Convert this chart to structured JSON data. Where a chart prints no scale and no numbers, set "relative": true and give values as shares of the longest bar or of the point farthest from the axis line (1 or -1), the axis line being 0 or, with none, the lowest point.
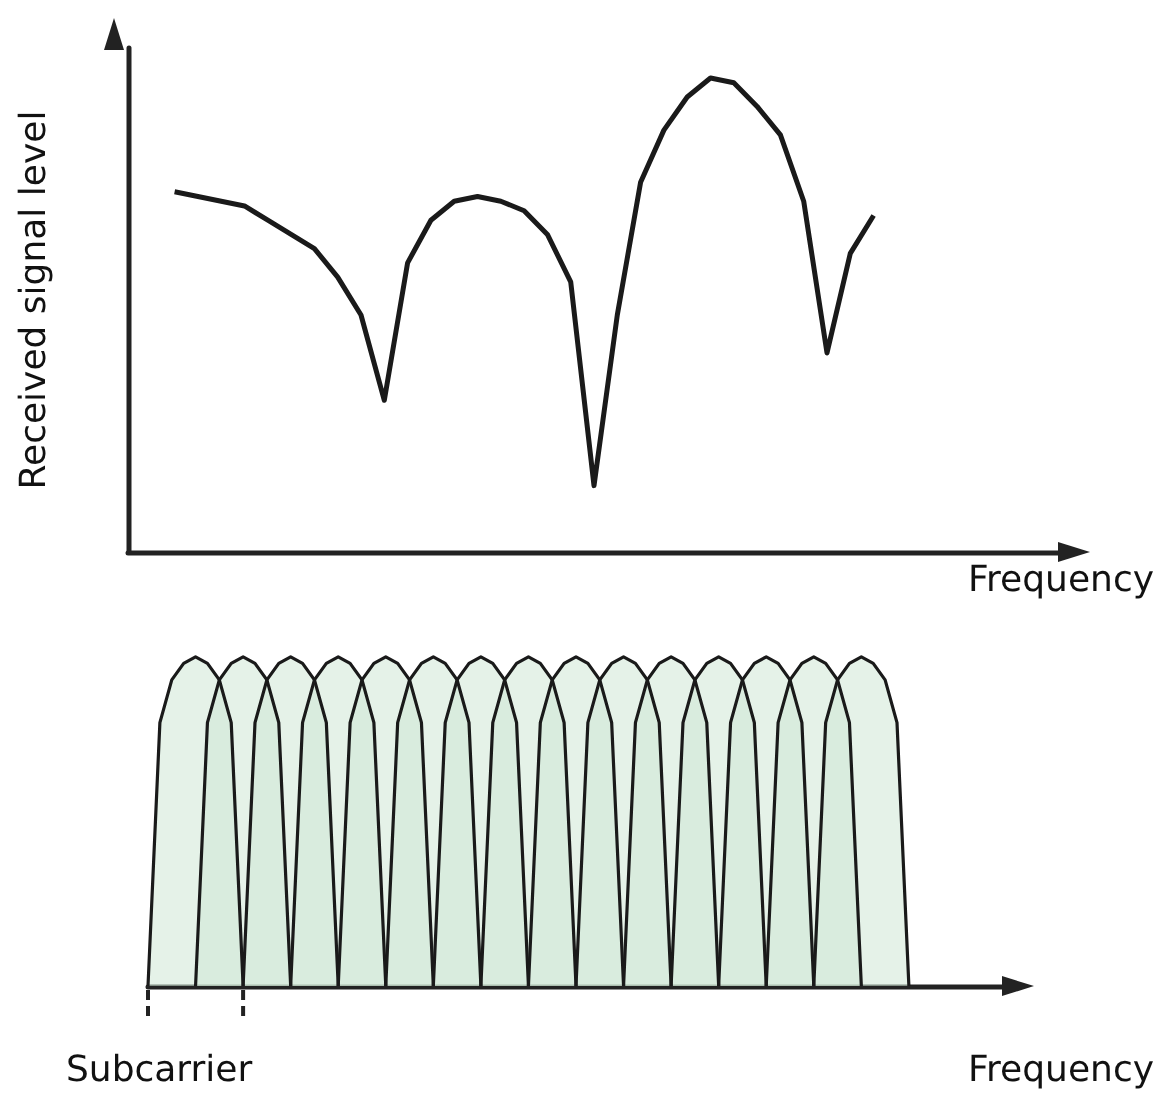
{
  "chart_data": [
    {
      "type": "line",
      "relative": true,
      "ylabel": "Received signal level",
      "xlabel": "Frequency",
      "marker": "none",
      "line_style": "solid",
      "categories": [
        null,
        null,
        null,
        null,
        null,
        null,
        null,
        null,
        null,
        null,
        null,
        null,
        null,
        null,
        null,
        null,
        null,
        null,
        null,
        null,
        null,
        null,
        null,
        null,
        null,
        null,
        null,
        null,
        null,
        null,
        null,
        null,
        null,
        null,
        null,
        null,
        null,
        null,
        null,
        null,
        null
      ],
      "series": [
        {
          "color": "#1a1a1a",
          "values": [
            null,
            null,
            0.76,
            0.75,
            0.74,
            0.73,
            0.7,
            0.67,
            0.64,
            0.58,
            0.5,
            0.32,
            0.61,
            0.7,
            0.74,
            0.75,
            0.74,
            0.72,
            0.67,
            0.57,
            0.14,
            0.5,
            0.78,
            0.89,
            0.96,
            1,
            0.99,
            0.94,
            0.88,
            0.74,
            0.42,
            0.63,
            0.71,
            null,
            null,
            null,
            null,
            null,
            null,
            null,
            null
          ]
        }
      ]
    },
    {
      "type": "area",
      "relative": true,
      "xlabel": "Frequency",
      "marker": "none",
      "annotations": [
        "Subcarrier"
      ],
      "categories": [
        null,
        null,
        null,
        null,
        null,
        null,
        null,
        null,
        null,
        null,
        null,
        null,
        null,
        null,
        null,
        null,
        null,
        null,
        null,
        null,
        null,
        null,
        null,
        null,
        null,
        null,
        null,
        null,
        null,
        null,
        null,
        null,
        null,
        null,
        null,
        null,
        null,
        null,
        null,
        null,
        null,
        null,
        null,
        null,
        null,
        null,
        null,
        null,
        null,
        null,
        null,
        null,
        null,
        null,
        null,
        null,
        null,
        null,
        null,
        null,
        null,
        null,
        null,
        null,
        null,
        null,
        null,
        null,
        null,
        null,
        null,
        null,
        null
      ],
      "series": [
        {
          "color": "#cfe8d5",
          "values": [
            0,
            0.8,
            0.93,
            0.98,
            1,
            0.98,
            0.93,
            0.8,
            0,
            null,
            null,
            null,
            null,
            null,
            null,
            null,
            null,
            null,
            null,
            null,
            null,
            null,
            null,
            null,
            null,
            null,
            null,
            null,
            null,
            null,
            null,
            null,
            null,
            null,
            null,
            null,
            null,
            null,
            null,
            null,
            null,
            null,
            null,
            null,
            null,
            null,
            null,
            null,
            null,
            null,
            null,
            null,
            null,
            null,
            null,
            null,
            null,
            null,
            null,
            null,
            null,
            null,
            null,
            null,
            null,
            null,
            null,
            null,
            null,
            null,
            null,
            null,
            null
          ]
        },
        {
          "color": "#cfe8d5",
          "values": [
            null,
            null,
            null,
            null,
            0,
            0.8,
            0.93,
            0.98,
            1,
            0.98,
            0.93,
            0.8,
            0,
            null,
            null,
            null,
            null,
            null,
            null,
            null,
            null,
            null,
            null,
            null,
            null,
            null,
            null,
            null,
            null,
            null,
            null,
            null,
            null,
            null,
            null,
            null,
            null,
            null,
            null,
            null,
            null,
            null,
            null,
            null,
            null,
            null,
            null,
            null,
            null,
            null,
            null,
            null,
            null,
            null,
            null,
            null,
            null,
            null,
            null,
            null,
            null,
            null,
            null,
            null,
            null,
            null,
            null,
            null,
            null,
            null,
            null,
            null,
            null
          ]
        },
        {
          "color": "#cfe8d5",
          "values": [
            null,
            null,
            null,
            null,
            null,
            null,
            null,
            null,
            0,
            0.8,
            0.93,
            0.98,
            1,
            0.98,
            0.93,
            0.8,
            0,
            null,
            null,
            null,
            null,
            null,
            null,
            null,
            null,
            null,
            null,
            null,
            null,
            null,
            null,
            null,
            null,
            null,
            null,
            null,
            null,
            null,
            null,
            null,
            null,
            null,
            null,
            null,
            null,
            null,
            null,
            null,
            null,
            null,
            null,
            null,
            null,
            null,
            null,
            null,
            null,
            null,
            null,
            null,
            null,
            null,
            null,
            null,
            null,
            null,
            null,
            null,
            null,
            null,
            null,
            null,
            null
          ]
        },
        {
          "color": "#cfe8d5",
          "values": [
            null,
            null,
            null,
            null,
            null,
            null,
            null,
            null,
            null,
            null,
            null,
            null,
            0,
            0.8,
            0.93,
            0.98,
            1,
            0.98,
            0.93,
            0.8,
            0,
            null,
            null,
            null,
            null,
            null,
            null,
            null,
            null,
            null,
            null,
            null,
            null,
            null,
            null,
            null,
            null,
            null,
            null,
            null,
            null,
            null,
            null,
            null,
            null,
            null,
            null,
            null,
            null,
            null,
            null,
            null,
            null,
            null,
            null,
            null,
            null,
            null,
            null,
            null,
            null,
            null,
            null,
            null,
            null,
            null,
            null,
            null,
            null,
            null,
            null,
            null,
            null
          ]
        },
        {
          "color": "#cfe8d5",
          "values": [
            null,
            null,
            null,
            null,
            null,
            null,
            null,
            null,
            null,
            null,
            null,
            null,
            null,
            null,
            null,
            null,
            0,
            0.8,
            0.93,
            0.98,
            1,
            0.98,
            0.93,
            0.8,
            0,
            null,
            null,
            null,
            null,
            null,
            null,
            null,
            null,
            null,
            null,
            null,
            null,
            null,
            null,
            null,
            null,
            null,
            null,
            null,
            null,
            null,
            null,
            null,
            null,
            null,
            null,
            null,
            null,
            null,
            null,
            null,
            null,
            null,
            null,
            null,
            null,
            null,
            null,
            null,
            null,
            null,
            null,
            null,
            null,
            null,
            null,
            null,
            null
          ]
        },
        {
          "color": "#cfe8d5",
          "values": [
            null,
            null,
            null,
            null,
            null,
            null,
            null,
            null,
            null,
            null,
            null,
            null,
            null,
            null,
            null,
            null,
            null,
            null,
            null,
            null,
            0,
            0.8,
            0.93,
            0.98,
            1,
            0.98,
            0.93,
            0.8,
            0,
            null,
            null,
            null,
            null,
            null,
            null,
            null,
            null,
            null,
            null,
            null,
            null,
            null,
            null,
            null,
            null,
            null,
            null,
            null,
            null,
            null,
            null,
            null,
            null,
            null,
            null,
            null,
            null,
            null,
            null,
            null,
            null,
            null,
            null,
            null,
            null,
            null,
            null,
            null,
            null,
            null,
            null,
            null,
            null
          ]
        },
        {
          "color": "#cfe8d5",
          "values": [
            null,
            null,
            null,
            null,
            null,
            null,
            null,
            null,
            null,
            null,
            null,
            null,
            null,
            null,
            null,
            null,
            null,
            null,
            null,
            null,
            null,
            null,
            null,
            null,
            0,
            0.8,
            0.93,
            0.98,
            1,
            0.98,
            0.93,
            0.8,
            0,
            null,
            null,
            null,
            null,
            null,
            null,
            null,
            null,
            null,
            null,
            null,
            null,
            null,
            null,
            null,
            null,
            null,
            null,
            null,
            null,
            null,
            null,
            null,
            null,
            null,
            null,
            null,
            null,
            null,
            null,
            null,
            null,
            null,
            null,
            null,
            null,
            null,
            null,
            null,
            null
          ]
        },
        {
          "color": "#cfe8d5",
          "values": [
            null,
            null,
            null,
            null,
            null,
            null,
            null,
            null,
            null,
            null,
            null,
            null,
            null,
            null,
            null,
            null,
            null,
            null,
            null,
            null,
            null,
            null,
            null,
            null,
            null,
            null,
            null,
            null,
            0,
            0.8,
            0.93,
            0.98,
            1,
            0.98,
            0.93,
            0.8,
            0,
            null,
            null,
            null,
            null,
            null,
            null,
            null,
            null,
            null,
            null,
            null,
            null,
            null,
            null,
            null,
            null,
            null,
            null,
            null,
            null,
            null,
            null,
            null,
            null,
            null,
            null,
            null,
            null,
            null,
            null,
            null,
            null,
            null,
            null,
            null,
            null
          ]
        },
        {
          "color": "#cfe8d5",
          "values": [
            null,
            null,
            null,
            null,
            null,
            null,
            null,
            null,
            null,
            null,
            null,
            null,
            null,
            null,
            null,
            null,
            null,
            null,
            null,
            null,
            null,
            null,
            null,
            null,
            null,
            null,
            null,
            null,
            null,
            null,
            null,
            null,
            0,
            0.8,
            0.93,
            0.98,
            1,
            0.98,
            0.93,
            0.8,
            0,
            null,
            null,
            null,
            null,
            null,
            null,
            null,
            null,
            null,
            null,
            null,
            null,
            null,
            null,
            null,
            null,
            null,
            null,
            null,
            null,
            null,
            null,
            null,
            null,
            null,
            null,
            null,
            null,
            null,
            null,
            null,
            null
          ]
        },
        {
          "color": "#cfe8d5",
          "values": [
            null,
            null,
            null,
            null,
            null,
            null,
            null,
            null,
            null,
            null,
            null,
            null,
            null,
            null,
            null,
            null,
            null,
            null,
            null,
            null,
            null,
            null,
            null,
            null,
            null,
            null,
            null,
            null,
            null,
            null,
            null,
            null,
            null,
            null,
            null,
            null,
            0,
            0.8,
            0.93,
            0.98,
            1,
            0.98,
            0.93,
            0.8,
            0,
            null,
            null,
            null,
            null,
            null,
            null,
            null,
            null,
            null,
            null,
            null,
            null,
            null,
            null,
            null,
            null,
            null,
            null,
            null,
            null,
            null,
            null,
            null,
            null,
            null,
            null,
            null,
            null
          ]
        },
        {
          "color": "#cfe8d5",
          "values": [
            null,
            null,
            null,
            null,
            null,
            null,
            null,
            null,
            null,
            null,
            null,
            null,
            null,
            null,
            null,
            null,
            null,
            null,
            null,
            null,
            null,
            null,
            null,
            null,
            null,
            null,
            null,
            null,
            null,
            null,
            null,
            null,
            null,
            null,
            null,
            null,
            null,
            null,
            null,
            null,
            0,
            0.8,
            0.93,
            0.98,
            1,
            0.98,
            0.93,
            0.8,
            0,
            null,
            null,
            null,
            null,
            null,
            null,
            null,
            null,
            null,
            null,
            null,
            null,
            null,
            null,
            null,
            null,
            null,
            null,
            null,
            null,
            null,
            null,
            null,
            null
          ]
        },
        {
          "color": "#cfe8d5",
          "values": [
            null,
            null,
            null,
            null,
            null,
            null,
            null,
            null,
            null,
            null,
            null,
            null,
            null,
            null,
            null,
            null,
            null,
            null,
            null,
            null,
            null,
            null,
            null,
            null,
            null,
            null,
            null,
            null,
            null,
            null,
            null,
            null,
            null,
            null,
            null,
            null,
            null,
            null,
            null,
            null,
            null,
            null,
            null,
            null,
            0,
            0.8,
            0.93,
            0.98,
            1,
            0.98,
            0.93,
            0.8,
            0,
            null,
            null,
            null,
            null,
            null,
            null,
            null,
            null,
            null,
            null,
            null,
            null,
            null,
            null,
            null,
            null,
            null,
            null,
            null,
            null
          ]
        },
        {
          "color": "#cfe8d5",
          "values": [
            null,
            null,
            null,
            null,
            null,
            null,
            null,
            null,
            null,
            null,
            null,
            null,
            null,
            null,
            null,
            null,
            null,
            null,
            null,
            null,
            null,
            null,
            null,
            null,
            null,
            null,
            null,
            null,
            null,
            null,
            null,
            null,
            null,
            null,
            null,
            null,
            null,
            null,
            null,
            null,
            null,
            null,
            null,
            null,
            null,
            null,
            null,
            null,
            0,
            0.8,
            0.93,
            0.98,
            1,
            0.98,
            0.93,
            0.8,
            0,
            null,
            null,
            null,
            null,
            null,
            null,
            null,
            null,
            null,
            null,
            null,
            null,
            null,
            null,
            null,
            null
          ]
        },
        {
          "color": "#cfe8d5",
          "values": [
            null,
            null,
            null,
            null,
            null,
            null,
            null,
            null,
            null,
            null,
            null,
            null,
            null,
            null,
            null,
            null,
            null,
            null,
            null,
            null,
            null,
            null,
            null,
            null,
            null,
            null,
            null,
            null,
            null,
            null,
            null,
            null,
            null,
            null,
            null,
            null,
            null,
            null,
            null,
            null,
            null,
            null,
            null,
            null,
            null,
            null,
            null,
            null,
            null,
            null,
            null,
            null,
            0,
            0.8,
            0.93,
            0.98,
            1,
            0.98,
            0.93,
            0.8,
            0,
            null,
            null,
            null,
            null,
            null,
            null,
            null,
            null,
            null,
            null,
            null,
            null
          ]
        },
        {
          "color": "#cfe8d5",
          "values": [
            null,
            null,
            null,
            null,
            null,
            null,
            null,
            null,
            null,
            null,
            null,
            null,
            null,
            null,
            null,
            null,
            null,
            null,
            null,
            null,
            null,
            null,
            null,
            null,
            null,
            null,
            null,
            null,
            null,
            null,
            null,
            null,
            null,
            null,
            null,
            null,
            null,
            null,
            null,
            null,
            null,
            null,
            null,
            null,
            null,
            null,
            null,
            null,
            null,
            null,
            null,
            null,
            null,
            null,
            null,
            null,
            0,
            0.8,
            0.93,
            0.98,
            1,
            0.98,
            0.93,
            0.8,
            0,
            null,
            null,
            null,
            null,
            null,
            null,
            null,
            null
          ]
        }
      ]
    }
  ]
}
